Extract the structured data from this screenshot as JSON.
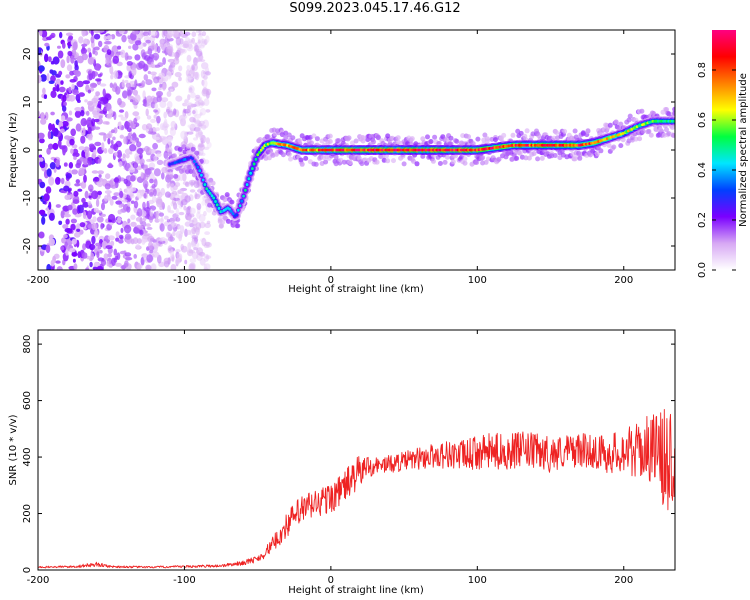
{
  "title": "S099.2023.045.17.46.G12",
  "chart_data": [
    {
      "type": "heatmap",
      "xlabel": "Height of straight line (km)",
      "ylabel": "Frequency (Hz)",
      "xlim": [
        -200,
        235
      ],
      "ylim": [
        -25,
        25
      ],
      "xticks": [
        -200,
        -100,
        0,
        100,
        200
      ],
      "yticks": [
        -20,
        -10,
        0,
        10,
        20
      ],
      "colorbar": {
        "label": "Normalized spectral amplitude",
        "range": [
          0,
          0.96
        ],
        "ticks": [
          0.0,
          0.2,
          0.4,
          0.6,
          0.8
        ],
        "colors": [
          "#ffffff",
          "#d7a8f4",
          "#7a00ff",
          "#0040ff",
          "#00e6ff",
          "#00ff40",
          "#ffff00",
          "#ff8000",
          "#ff0000",
          "#ff0080"
        ]
      },
      "ridge_x": [
        -110,
        -100,
        -95,
        -90,
        -85,
        -80,
        -75,
        -70,
        -65,
        -60,
        -55,
        -50,
        -45,
        -40,
        -35,
        -30,
        -25,
        -20,
        -10,
        0,
        25,
        50,
        75,
        100,
        125,
        150,
        170,
        180,
        190,
        200,
        210,
        220,
        230
      ],
      "ridge_y": [
        -3,
        -2,
        -1.5,
        -4,
        -8,
        -10,
        -13,
        -12,
        -14,
        -10,
        -5,
        -1,
        1,
        1.5,
        1.2,
        1,
        0.5,
        0,
        0,
        0,
        0,
        0,
        0,
        0,
        1,
        1,
        1,
        1.5,
        2.5,
        3.5,
        5,
        6,
        6
      ],
      "ridge_amp": [
        0.3,
        0.35,
        0.3,
        0.4,
        0.45,
        0.5,
        0.45,
        0.4,
        0.35,
        0.45,
        0.5,
        0.55,
        0.6,
        0.65,
        0.7,
        0.72,
        0.75,
        0.78,
        0.8,
        0.85,
        0.9,
        0.92,
        0.9,
        0.88,
        0.85,
        0.86,
        0.88,
        0.8,
        0.7,
        0.65,
        0.6,
        0.55,
        0.5
      ],
      "noise_region": [
        -200,
        -100
      ]
    },
    {
      "type": "line",
      "xlabel": "Height of straight line (km)",
      "ylabel": "SNR (10 * v/v)",
      "xlim": [
        -200,
        235
      ],
      "ylim": [
        0,
        850
      ],
      "xticks": [
        -200,
        -100,
        0,
        100,
        200
      ],
      "yticks": [
        0,
        200,
        400,
        600,
        800
      ],
      "color": "#ee2222",
      "x": [
        -200,
        -175,
        -160,
        -150,
        -125,
        -100,
        -75,
        -60,
        -50,
        -45,
        -40,
        -35,
        -30,
        -25,
        -20,
        -15,
        -10,
        -5,
        0,
        5,
        10,
        15,
        20,
        25,
        30,
        40,
        50,
        60,
        70,
        80,
        90,
        100,
        110,
        120,
        130,
        140,
        150,
        160,
        170,
        180,
        190,
        200,
        210,
        215,
        220,
        225,
        230,
        233,
        235
      ],
      "y": [
        10,
        12,
        20,
        12,
        10,
        12,
        15,
        25,
        40,
        60,
        90,
        120,
        160,
        190,
        210,
        225,
        235,
        245,
        255,
        275,
        300,
        325,
        350,
        365,
        370,
        375,
        385,
        395,
        405,
        410,
        405,
        415,
        420,
        420,
        425,
        420,
        410,
        420,
        425,
        420,
        410,
        425,
        420,
        430,
        440,
        400,
        380,
        420,
        400
      ],
      "noise": [
        3,
        4,
        8,
        4,
        3,
        4,
        5,
        8,
        12,
        18,
        25,
        35,
        45,
        50,
        55,
        55,
        55,
        55,
        55,
        55,
        60,
        60,
        60,
        45,
        30,
        32,
        35,
        40,
        45,
        50,
        55,
        60,
        65,
        65,
        65,
        65,
        65,
        60,
        60,
        60,
        70,
        80,
        100,
        110,
        130,
        160,
        200,
        220,
        200
      ]
    }
  ]
}
